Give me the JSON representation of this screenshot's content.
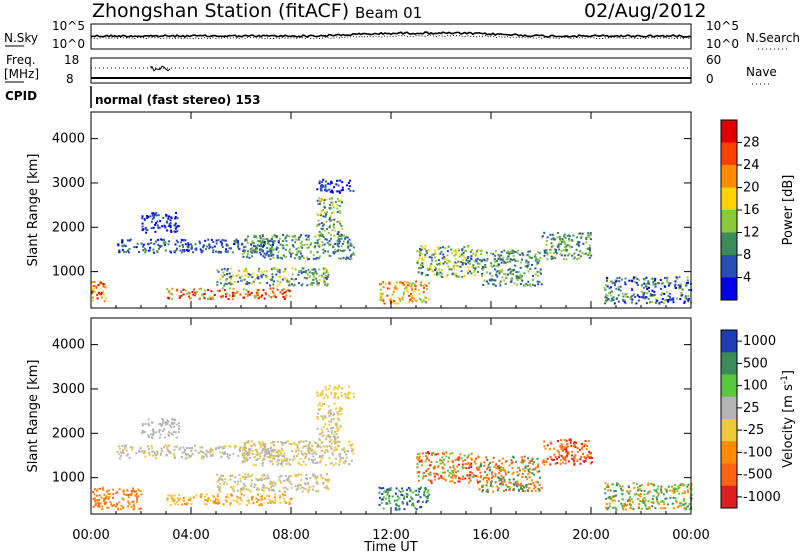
{
  "header": {
    "title": "Zhongshan Station (fitACF)",
    "beam": "Beam 01",
    "date": "02/Aug/2012"
  },
  "panels": {
    "nsky": {
      "label": "N.Sky",
      "left_top_tick": "10^5",
      "left_bottom_tick": "10^0",
      "right_top_tick": "10^5",
      "right_bottom_tick": "10^0",
      "right_label": "N.Search"
    },
    "freq": {
      "label_1": "Freq.",
      "label_2": "[MHz]",
      "left_top_tick": "18",
      "left_bottom_tick": "8",
      "right_top_tick": "60",
      "right_bottom_tick": "0",
      "right_label": "Nave"
    },
    "cpid": {
      "label": "CPID",
      "text": "normal (fast stereo) 153"
    }
  },
  "axes": {
    "x_label": "Time UT",
    "x_ticks": [
      "00:00",
      "04:00",
      "08:00",
      "12:00",
      "16:00",
      "20:00",
      "00:00"
    ],
    "y_label": "Slant Range [km]",
    "y_ticks": [
      "1000",
      "2000",
      "3000",
      "4000"
    ]
  },
  "colorbars": {
    "power": {
      "label": "Power [dB]",
      "tick_labels": [
        "28",
        "24",
        "20",
        "16",
        "12",
        "8",
        "4"
      ],
      "colors": [
        "#e00000",
        "#ff4000",
        "#ff8c00",
        "#ffd200",
        "#8cc83c",
        "#3c8c5a",
        "#2850b4",
        "#0000e6"
      ]
    },
    "velocity": {
      "label": "Velocity [m s",
      "label_sup": "-1",
      "label_end": "]",
      "tick_labels": [
        "1000",
        "500",
        "100",
        "25",
        "-25",
        "-100",
        "-500",
        "-1000"
      ],
      "colors": [
        "#1e3cb4",
        "#3c8c5a",
        "#5ac83c",
        "#b4b4b4",
        "#f0c83c",
        "#ff8c00",
        "#ff6414",
        "#e01e1e"
      ]
    }
  },
  "chart_data": {
    "type": "heatmap",
    "title": "Zhongshan Station (fitACF)",
    "xlabel": "Time UT",
    "ylabel": "Slant Range [km]",
    "xlim": [
      0,
      24
    ],
    "ylim": [
      180,
      4600
    ],
    "x_tick_values": [
      0,
      4,
      8,
      12,
      16,
      20,
      24
    ],
    "y_tick_values": [
      1000,
      2000,
      3000,
      4000
    ]
  }
}
